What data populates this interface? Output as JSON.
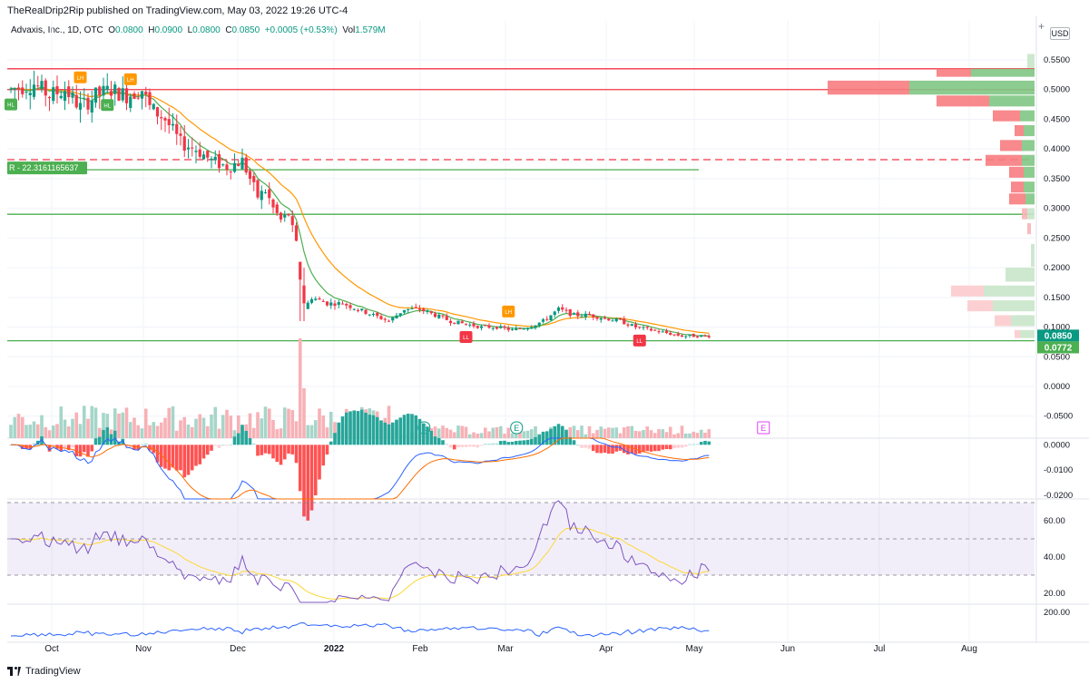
{
  "header": {
    "published": "TheRealDrip2Rip published on TradingView.com, May 03, 2022 19:26 UTC-4"
  },
  "legend": {
    "symbol": "Advaxis, Inc., 1D, OTC",
    "o_label": "O",
    "o": "0.0800",
    "h_label": "H",
    "h": "0.0900",
    "l_label": "L",
    "l": "0.0800",
    "c_label": "C",
    "c": "0.0850",
    "change": "+0.0005 (+0.53%)",
    "vol_label": "Vol",
    "vol": "1.579M"
  },
  "currency": "USD",
  "footer": {
    "brand": "TradingView"
  },
  "colors": {
    "up": "#089981",
    "down": "#f23645",
    "ema_fast": "#4caf50",
    "ema_slow": "#ff9800",
    "macd": "#2962ff",
    "signal": "#ff6d00",
    "rsi": "#7e57c2",
    "rsi_ma": "#fdd835",
    "bottom_line": "#2962ff"
  },
  "chart_data": [
    {
      "type": "candlestick",
      "title": "Advaxis, Inc., 1D, OTC",
      "x_tick_labels": [
        "Oct",
        "Nov",
        "Dec",
        "2022",
        "Feb",
        "Mar",
        "Apr",
        "May",
        "Jun",
        "Jul",
        "Aug"
      ],
      "y_tick_labels": [
        "0.5500",
        "0.5000",
        "0.4500",
        "0.4000",
        "0.3500",
        "0.3000",
        "0.2500",
        "0.2000",
        "0.1500",
        "0.1000",
        "0.0500",
        "0.0000",
        "-0.0500"
      ],
      "ylim": [
        -0.06,
        0.56
      ],
      "close_path": [
        [
          0,
          0.5
        ],
        [
          6,
          0.51
        ],
        [
          10,
          0.49
        ],
        [
          14,
          0.5
        ],
        [
          18,
          0.47
        ],
        [
          22,
          0.49
        ],
        [
          26,
          0.5
        ],
        [
          30,
          0.49
        ],
        [
          34,
          0.5
        ],
        [
          36,
          0.47
        ],
        [
          40,
          0.45
        ],
        [
          44,
          0.41
        ],
        [
          48,
          0.4
        ],
        [
          52,
          0.38
        ],
        [
          56,
          0.37
        ],
        [
          60,
          0.38
        ],
        [
          62,
          0.35
        ],
        [
          64,
          0.32
        ],
        [
          66,
          0.33
        ],
        [
          68,
          0.3
        ],
        [
          70,
          0.28
        ],
        [
          72,
          0.29
        ],
        [
          74,
          0.24
        ],
        [
          75,
          0.17
        ],
        [
          76,
          0.13
        ],
        [
          78,
          0.15
        ],
        [
          82,
          0.14
        ],
        [
          86,
          0.14
        ],
        [
          90,
          0.13
        ],
        [
          94,
          0.12
        ],
        [
          98,
          0.11
        ],
        [
          102,
          0.13
        ],
        [
          106,
          0.13
        ],
        [
          110,
          0.12
        ],
        [
          114,
          0.11
        ],
        [
          118,
          0.105
        ],
        [
          122,
          0.1
        ],
        [
          126,
          0.1
        ],
        [
          130,
          0.095
        ],
        [
          134,
          0.1
        ],
        [
          138,
          0.11
        ],
        [
          142,
          0.13
        ],
        [
          146,
          0.12
        ],
        [
          150,
          0.12
        ],
        [
          154,
          0.115
        ],
        [
          158,
          0.11
        ],
        [
          162,
          0.1
        ],
        [
          166,
          0.095
        ],
        [
          170,
          0.09
        ],
        [
          174,
          0.085
        ],
        [
          178,
          0.085
        ],
        [
          181,
          0.085
        ]
      ],
      "horizontal_levels": [
        {
          "price": 0.535,
          "color": "#f23645",
          "style": "solid"
        },
        {
          "price": 0.5,
          "color": "#f23645",
          "style": "solid"
        },
        {
          "price": 0.382,
          "color": "#f23645",
          "style": "dashed"
        },
        {
          "price": 0.365,
          "color": "#4caf50",
          "style": "solid"
        },
        {
          "price": 0.29,
          "color": "#4caf50",
          "style": "solid"
        },
        {
          "price": 0.077,
          "color": "#4caf50",
          "style": "solid"
        }
      ],
      "price_labels": [
        {
          "text": "0.0850",
          "color": "#089981"
        },
        {
          "text": "0.0772",
          "color": "#4caf50"
        }
      ],
      "level_label": "R - 22.3161165637",
      "pivot_labels": [
        {
          "text": "LH",
          "color": "#ff9800",
          "idx": 18
        },
        {
          "text": "HL",
          "color": "#4caf50",
          "idx": 25
        },
        {
          "text": "LH",
          "color": "#ff9800",
          "idx": 31
        },
        {
          "text": "HL",
          "color": "#4caf50",
          "idx": 0
        },
        {
          "text": "LH",
          "color": "#ff9800",
          "idx": 129
        },
        {
          "text": "LL",
          "color": "#f23645",
          "idx": 118
        },
        {
          "text": "LL",
          "color": "#f23645",
          "idx": 163
        }
      ],
      "earnings_markers": [
        {
          "text": "E",
          "idx": 107
        },
        {
          "text": "E",
          "idx": 131
        },
        {
          "text": "E",
          "idx": 195
        }
      ]
    },
    {
      "type": "bar",
      "title": "Volume"
    },
    {
      "type": "bar",
      "title": "MACD",
      "y_tick_labels": [
        "0.0000",
        "-0.0100",
        "-0.0200"
      ],
      "ylim": [
        -0.0215,
        0.0012
      ]
    },
    {
      "type": "line",
      "title": "RSI",
      "y_tick_labels": [
        "60.00",
        "40.00",
        "20.00"
      ],
      "ylim": [
        14,
        72
      ],
      "bands": [
        70,
        50,
        30
      ]
    },
    {
      "type": "line",
      "title": "",
      "y_tick_labels": [
        "200.00"
      ]
    }
  ]
}
